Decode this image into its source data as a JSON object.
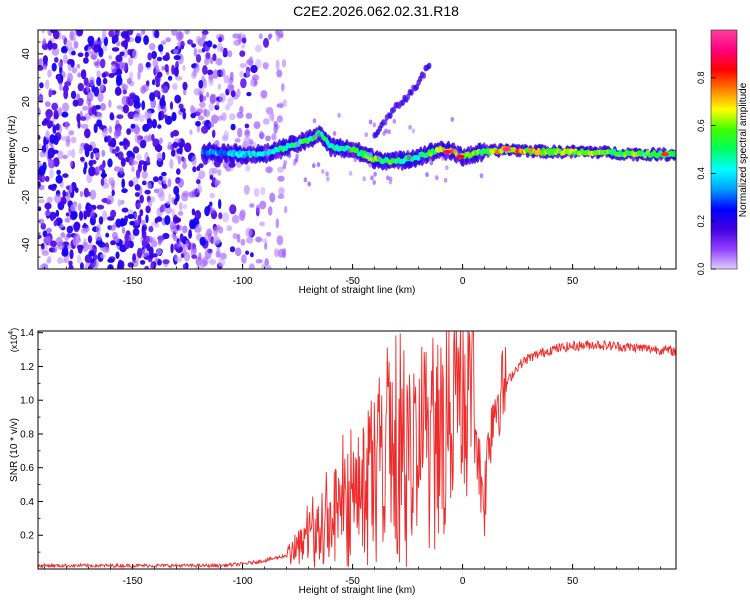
{
  "title": "C2E2.2026.062.02.31.R18",
  "chart_data": [
    {
      "type": "heatmap",
      "name": "spectrogram",
      "xlabel": "Height of straight line (km)",
      "ylabel": "Frequency (Hz)",
      "xlim": [
        -193,
        97
      ],
      "ylim": [
        -50,
        50
      ],
      "xticks": [
        -150,
        -100,
        -50,
        0,
        50
      ],
      "xtick_labels": [
        "-150",
        "-100",
        "-50",
        "0",
        "50"
      ],
      "yticks": [
        -40,
        -20,
        0,
        20,
        40
      ],
      "ytick_labels": [
        "-40",
        "-20",
        "0",
        "20",
        "40"
      ],
      "colorbar": {
        "label": "Normalized spectral amplitude",
        "range": [
          0,
          1
        ],
        "ticks": [
          0.0,
          0.2,
          0.4,
          0.6,
          0.8
        ],
        "tick_labels": [
          "0.0",
          "0.2",
          "0.4",
          "0.6",
          "0.8"
        ],
        "colormap": [
          "#e0d0ff",
          "#9040ff",
          "#4000e0",
          "#0000ff",
          "#00a0ff",
          "#00ffff",
          "#00ff60",
          "#40ff00",
          "#ffff00",
          "#ff8000",
          "#ff0000",
          "#ff0080",
          "#ff40a0"
        ]
      },
      "features": {
        "noise_region_km": [
          -193,
          -88
        ],
        "main_band": {
          "x": [
            -115,
            -100,
            -90,
            -80,
            -70,
            -65,
            -60,
            -50,
            -40,
            -30,
            -20,
            -10,
            -5,
            0,
            5,
            10,
            20,
            40,
            60,
            80,
            97
          ],
          "freq": [
            -1,
            -2,
            -2,
            1,
            4,
            7,
            1,
            0,
            -4,
            -5,
            -3,
            0,
            -1,
            -3,
            -2,
            -1,
            0,
            -1,
            -1,
            -2,
            -2
          ],
          "amplitude": [
            0.35,
            0.4,
            0.45,
            0.5,
            0.55,
            0.5,
            0.5,
            0.55,
            0.6,
            0.55,
            0.5,
            0.65,
            0.75,
            0.7,
            0.65,
            0.6,
            0.8,
            0.65,
            0.6,
            0.6,
            0.55
          ]
        },
        "rising_trace": {
          "x": [
            -40,
            -35,
            -30,
            -25,
            -20,
            -15
          ],
          "freq": [
            6,
            12,
            18,
            22,
            28,
            36
          ]
        }
      }
    },
    {
      "type": "line",
      "name": "snr",
      "xlabel": "Height of straight line (km)",
      "ylabel": "SNR (10 * v/v)",
      "scale_label": "(x10",
      "scale_exponent": "4",
      "scale_close": ")",
      "xlim": [
        -193,
        97
      ],
      "ylim": [
        0,
        1.41
      ],
      "xticks": [
        -150,
        -100,
        -50,
        0,
        50
      ],
      "xtick_labels": [
        "-150",
        "-100",
        "-50",
        "0",
        "50"
      ],
      "yticks": [
        0.2,
        0.4,
        0.6,
        0.8,
        1.0,
        1.2,
        1.4
      ],
      "ytick_labels": [
        "0.2",
        "0.4",
        "0.6",
        "0.8",
        "1.0",
        "1.2",
        "1.4"
      ],
      "color": "#ee2a2a",
      "series": [
        {
          "name": "SNR",
          "x": [
            -193,
            -170,
            -150,
            -130,
            -110,
            -100,
            -90,
            -80,
            -75,
            -70,
            -65,
            -60,
            -55,
            -50,
            -45,
            -40,
            -35,
            -30,
            -25,
            -20,
            -15,
            -10,
            -7,
            -5,
            -2,
            0,
            3,
            6,
            8,
            10,
            12,
            15,
            20,
            25,
            30,
            40,
            50,
            60,
            70,
            80,
            90,
            97
          ],
          "y": [
            0.02,
            0.02,
            0.02,
            0.02,
            0.02,
            0.03,
            0.05,
            0.08,
            0.12,
            0.18,
            0.2,
            0.28,
            0.35,
            0.38,
            0.45,
            0.5,
            0.55,
            0.6,
            0.55,
            0.62,
            0.6,
            0.65,
            0.8,
            0.9,
            0.88,
            0.92,
            0.95,
            0.85,
            0.55,
            0.42,
            0.8,
            1.0,
            1.1,
            1.2,
            1.25,
            1.3,
            1.32,
            1.33,
            1.32,
            1.31,
            1.3,
            1.29
          ]
        }
      ]
    }
  ]
}
